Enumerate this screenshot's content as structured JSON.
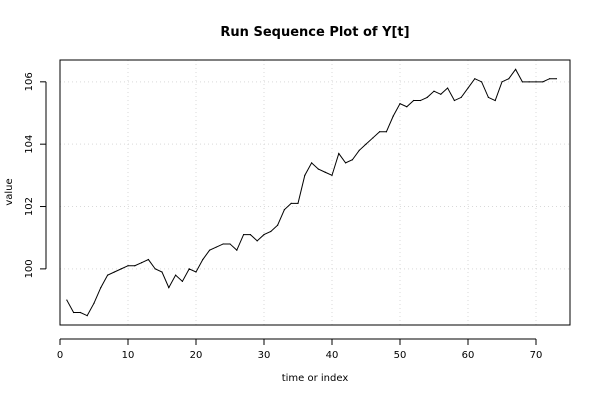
{
  "chart_data": {
    "type": "line",
    "title": "Run Sequence Plot of Y[t]",
    "xlabel": "time or index",
    "ylabel": "value",
    "xlim": [
      0,
      75
    ],
    "ylim": [
      98.2,
      106.7
    ],
    "xticks": [
      0,
      10,
      20,
      30,
      40,
      50,
      60,
      70
    ],
    "yticks": [
      100,
      102,
      104,
      106
    ],
    "grid": true,
    "series": [
      {
        "x": [
          1,
          2,
          3,
          4,
          5,
          6,
          7,
          8,
          9,
          10,
          11,
          12,
          13,
          14,
          15,
          16,
          17,
          18,
          19,
          20,
          21,
          22,
          23,
          24,
          25,
          26,
          27,
          28,
          29,
          30,
          31,
          32,
          33,
          34,
          35,
          36,
          37,
          38,
          39,
          40,
          41,
          42,
          43,
          44,
          45,
          46,
          47,
          48,
          49,
          50,
          51,
          52,
          53,
          54,
          55,
          56,
          57,
          58,
          59,
          60,
          61,
          62,
          63,
          64,
          65,
          66,
          67,
          68,
          69,
          70,
          71,
          72,
          73
        ],
        "values": [
          99.0,
          98.6,
          98.6,
          98.5,
          98.9,
          99.4,
          99.8,
          99.9,
          100.0,
          100.1,
          100.1,
          100.2,
          100.3,
          100.0,
          99.9,
          99.4,
          99.8,
          99.6,
          100.0,
          99.9,
          100.3,
          100.6,
          100.7,
          100.8,
          100.8,
          100.6,
          101.1,
          101.1,
          100.9,
          101.1,
          101.2,
          101.4,
          101.9,
          102.1,
          102.1,
          103.0,
          103.4,
          103.2,
          103.1,
          103.0,
          103.7,
          103.4,
          103.5,
          103.8,
          104.0,
          104.2,
          104.4,
          104.4,
          104.9,
          105.3,
          105.2,
          105.4,
          105.4,
          105.5,
          105.7,
          105.6,
          105.8,
          105.4,
          105.5,
          105.8,
          106.1,
          106.0,
          105.5,
          105.4,
          106.0,
          106.1,
          106.4,
          106.0,
          106.0,
          106.0,
          106.0,
          106.1,
          106.1
        ]
      }
    ]
  }
}
